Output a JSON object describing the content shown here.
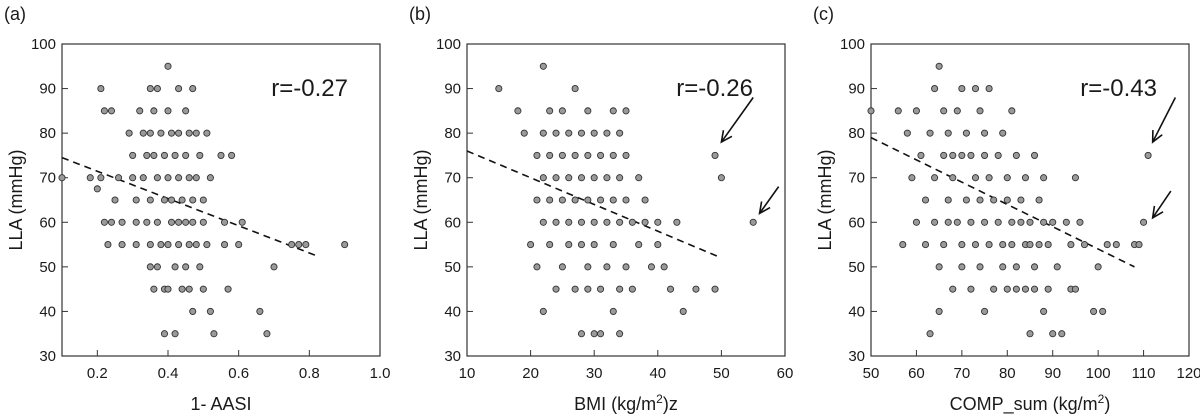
{
  "chart_data": [
    {
      "type": "scatter",
      "panel_label": "(a)",
      "xlabel": "1- AASI",
      "ylabel": "LLA (mmHg)",
      "annotation": "r=-0.27",
      "xlim": [
        0.1,
        1.0
      ],
      "ylim": [
        30,
        100
      ],
      "xticks": [
        0.2,
        0.4,
        0.6,
        0.8,
        1.0
      ],
      "xtick_labels": [
        "0.2",
        "0.4",
        "0.6",
        "0.8",
        "1.0"
      ],
      "yticks": [
        30,
        40,
        50,
        60,
        70,
        80,
        90,
        100
      ],
      "trend": [
        [
          0.1,
          74.5
        ],
        [
          0.82,
          52.5
        ]
      ],
      "points": [
        [
          0.1,
          70
        ],
        [
          0.18,
          70
        ],
        [
          0.2,
          67.5
        ],
        [
          0.21,
          90
        ],
        [
          0.21,
          70
        ],
        [
          0.22,
          85
        ],
        [
          0.22,
          60
        ],
        [
          0.23,
          55
        ],
        [
          0.24,
          60
        ],
        [
          0.24,
          85
        ],
        [
          0.25,
          65
        ],
        [
          0.26,
          70
        ],
        [
          0.27,
          55
        ],
        [
          0.27,
          60
        ],
        [
          0.29,
          80
        ],
        [
          0.3,
          75
        ],
        [
          0.3,
          70
        ],
        [
          0.31,
          65
        ],
        [
          0.31,
          60
        ],
        [
          0.31,
          55
        ],
        [
          0.32,
          85
        ],
        [
          0.33,
          80
        ],
        [
          0.33,
          70
        ],
        [
          0.34,
          75
        ],
        [
          0.34,
          60
        ],
        [
          0.35,
          90
        ],
        [
          0.35,
          80
        ],
        [
          0.35,
          65
        ],
        [
          0.35,
          55
        ],
        [
          0.35,
          50
        ],
        [
          0.36,
          85
        ],
        [
          0.36,
          75
        ],
        [
          0.36,
          45
        ],
        [
          0.37,
          90
        ],
        [
          0.37,
          70
        ],
        [
          0.37,
          60
        ],
        [
          0.37,
          50
        ],
        [
          0.38,
          80
        ],
        [
          0.38,
          55
        ],
        [
          0.39,
          75
        ],
        [
          0.39,
          65
        ],
        [
          0.39,
          45
        ],
        [
          0.39,
          35
        ],
        [
          0.4,
          95
        ],
        [
          0.4,
          85
        ],
        [
          0.4,
          70
        ],
        [
          0.4,
          55
        ],
        [
          0.4,
          45
        ],
        [
          0.41,
          80
        ],
        [
          0.41,
          65
        ],
        [
          0.41,
          60
        ],
        [
          0.42,
          75
        ],
        [
          0.42,
          50
        ],
        [
          0.42,
          35
        ],
        [
          0.43,
          90
        ],
        [
          0.43,
          80
        ],
        [
          0.43,
          70
        ],
        [
          0.43,
          60
        ],
        [
          0.43,
          55
        ],
        [
          0.44,
          65
        ],
        [
          0.44,
          45
        ],
        [
          0.45,
          85
        ],
        [
          0.45,
          75
        ],
        [
          0.45,
          60
        ],
        [
          0.45,
          50
        ],
        [
          0.46,
          80
        ],
        [
          0.46,
          70
        ],
        [
          0.46,
          55
        ],
        [
          0.46,
          45
        ],
        [
          0.47,
          90
        ],
        [
          0.47,
          65
        ],
        [
          0.47,
          60
        ],
        [
          0.47,
          40
        ],
        [
          0.48,
          80
        ],
        [
          0.48,
          70
        ],
        [
          0.48,
          55
        ],
        [
          0.49,
          75
        ],
        [
          0.49,
          50
        ],
        [
          0.5,
          65
        ],
        [
          0.5,
          60
        ],
        [
          0.5,
          45
        ],
        [
          0.51,
          80
        ],
        [
          0.51,
          55
        ],
        [
          0.52,
          70
        ],
        [
          0.52,
          40
        ],
        [
          0.53,
          35
        ],
        [
          0.55,
          75
        ],
        [
          0.56,
          60
        ],
        [
          0.56,
          55
        ],
        [
          0.57,
          45
        ],
        [
          0.58,
          75
        ],
        [
          0.6,
          55
        ],
        [
          0.61,
          60
        ],
        [
          0.66,
          40
        ],
        [
          0.68,
          35
        ],
        [
          0.7,
          50
        ],
        [
          0.75,
          55
        ],
        [
          0.77,
          55
        ],
        [
          0.79,
          55
        ],
        [
          0.9,
          55
        ]
      ]
    },
    {
      "type": "scatter",
      "panel_label": "(b)",
      "xlabel_parts": [
        "BMI (kg/m",
        "2",
        ")z"
      ],
      "ylabel": "LLA (mmHg)",
      "annotation": "r=-0.26",
      "xlim": [
        10,
        60
      ],
      "ylim": [
        30,
        100
      ],
      "xticks": [
        10,
        20,
        30,
        40,
        50,
        60
      ],
      "xtick_labels": [
        "10",
        "20",
        "30",
        "40",
        "50",
        "60"
      ],
      "yticks": [
        30,
        40,
        50,
        60,
        70,
        80,
        90,
        100
      ],
      "trend": [
        [
          10,
          76
        ],
        [
          50,
          52
        ]
      ],
      "arrows": [
        [
          [
            55,
            88
          ],
          [
            50,
            78
          ]
        ],
        [
          [
            59,
            68
          ],
          [
            56,
            62
          ]
        ]
      ],
      "points": [
        [
          15,
          90
        ],
        [
          18,
          85
        ],
        [
          19,
          80
        ],
        [
          20,
          55
        ],
        [
          21,
          75
        ],
        [
          21,
          65
        ],
        [
          21,
          50
        ],
        [
          22,
          95
        ],
        [
          22,
          80
        ],
        [
          22,
          70
        ],
        [
          22,
          60
        ],
        [
          22,
          40
        ],
        [
          23,
          85
        ],
        [
          23,
          75
        ],
        [
          23,
          65
        ],
        [
          23,
          55
        ],
        [
          24,
          80
        ],
        [
          24,
          70
        ],
        [
          24,
          60
        ],
        [
          24,
          45
        ],
        [
          25,
          85
        ],
        [
          25,
          75
        ],
        [
          25,
          65
        ],
        [
          25,
          50
        ],
        [
          26,
          80
        ],
        [
          26,
          70
        ],
        [
          26,
          60
        ],
        [
          26,
          55
        ],
        [
          27,
          90
        ],
        [
          27,
          75
        ],
        [
          27,
          65
        ],
        [
          27,
          45
        ],
        [
          28,
          80
        ],
        [
          28,
          70
        ],
        [
          28,
          60
        ],
        [
          28,
          55
        ],
        [
          28,
          35
        ],
        [
          29,
          85
        ],
        [
          29,
          75
        ],
        [
          29,
          65
        ],
        [
          29,
          50
        ],
        [
          29,
          45
        ],
        [
          30,
          80
        ],
        [
          30,
          70
        ],
        [
          30,
          60
        ],
        [
          30,
          55
        ],
        [
          30,
          35
        ],
        [
          31,
          75
        ],
        [
          31,
          65
        ],
        [
          31,
          45
        ],
        [
          31,
          35
        ],
        [
          32,
          80
        ],
        [
          32,
          70
        ],
        [
          32,
          60
        ],
        [
          32,
          50
        ],
        [
          33,
          85
        ],
        [
          33,
          75
        ],
        [
          33,
          65
        ],
        [
          33,
          55
        ],
        [
          33,
          40
        ],
        [
          34,
          80
        ],
        [
          34,
          70
        ],
        [
          34,
          60
        ],
        [
          34,
          45
        ],
        [
          34,
          35
        ],
        [
          35,
          85
        ],
        [
          35,
          75
        ],
        [
          35,
          65
        ],
        [
          35,
          50
        ],
        [
          36,
          60
        ],
        [
          36,
          45
        ],
        [
          37,
          70
        ],
        [
          37,
          55
        ],
        [
          38,
          65
        ],
        [
          38,
          60
        ],
        [
          39,
          50
        ],
        [
          40,
          55
        ],
        [
          40,
          60
        ],
        [
          41,
          50
        ],
        [
          42,
          45
        ],
        [
          43,
          60
        ],
        [
          44,
          40
        ],
        [
          46,
          45
        ],
        [
          49,
          75
        ],
        [
          49,
          45
        ],
        [
          50,
          70
        ],
        [
          55,
          60
        ]
      ]
    },
    {
      "type": "scatter",
      "panel_label": "(c)",
      "xlabel_parts": [
        "COMP_sum (kg/m",
        "2",
        ")"
      ],
      "ylabel": "LLA (mmHg)",
      "annotation": "r=-0.43",
      "xlim": [
        50,
        120
      ],
      "ylim": [
        30,
        100
      ],
      "xticks": [
        50,
        60,
        70,
        80,
        90,
        100,
        110,
        120
      ],
      "xtick_labels": [
        "50",
        "60",
        "70",
        "80",
        "90",
        "100",
        "110",
        "120"
      ],
      "yticks": [
        30,
        40,
        50,
        60,
        70,
        80,
        90,
        100
      ],
      "trend": [
        [
          50,
          79
        ],
        [
          108,
          50
        ]
      ],
      "arrows": [
        [
          [
            117,
            88
          ],
          [
            112,
            78
          ]
        ],
        [
          [
            116,
            67
          ],
          [
            112,
            61
          ]
        ]
      ],
      "points": [
        [
          50,
          85
        ],
        [
          56,
          85
        ],
        [
          57,
          55
        ],
        [
          58,
          80
        ],
        [
          59,
          70
        ],
        [
          60,
          85
        ],
        [
          60,
          60
        ],
        [
          61,
          75
        ],
        [
          62,
          65
        ],
        [
          62,
          55
        ],
        [
          63,
          80
        ],
        [
          63,
          35
        ],
        [
          64,
          90
        ],
        [
          64,
          70
        ],
        [
          64,
          60
        ],
        [
          65,
          95
        ],
        [
          65,
          50
        ],
        [
          65,
          40
        ],
        [
          66,
          85
        ],
        [
          66,
          75
        ],
        [
          66,
          55
        ],
        [
          67,
          80
        ],
        [
          67,
          65
        ],
        [
          67,
          60
        ],
        [
          68,
          75
        ],
        [
          68,
          70
        ],
        [
          68,
          45
        ],
        [
          69,
          85
        ],
        [
          69,
          60
        ],
        [
          70,
          90
        ],
        [
          70,
          75
        ],
        [
          70,
          55
        ],
        [
          70,
          50
        ],
        [
          71,
          80
        ],
        [
          71,
          65
        ],
        [
          72,
          75
        ],
        [
          72,
          60
        ],
        [
          72,
          45
        ],
        [
          73,
          90
        ],
        [
          73,
          70
        ],
        [
          73,
          55
        ],
        [
          74,
          85
        ],
        [
          74,
          65
        ],
        [
          74,
          50
        ],
        [
          75,
          80
        ],
        [
          75,
          75
        ],
        [
          75,
          60
        ],
        [
          75,
          40
        ],
        [
          76,
          90
        ],
        [
          76,
          70
        ],
        [
          76,
          55
        ],
        [
          77,
          65
        ],
        [
          77,
          45
        ],
        [
          78,
          75
        ],
        [
          78,
          60
        ],
        [
          79,
          80
        ],
        [
          79,
          55
        ],
        [
          79,
          50
        ],
        [
          80,
          70
        ],
        [
          80,
          65
        ],
        [
          80,
          45
        ],
        [
          81,
          85
        ],
        [
          81,
          60
        ],
        [
          81,
          55
        ],
        [
          82,
          75
        ],
        [
          82,
          50
        ],
        [
          82,
          45
        ],
        [
          83,
          65
        ],
        [
          83,
          60
        ],
        [
          84,
          70
        ],
        [
          84,
          55
        ],
        [
          84,
          45
        ],
        [
          85,
          60
        ],
        [
          85,
          55
        ],
        [
          85,
          35
        ],
        [
          86,
          75
        ],
        [
          86,
          50
        ],
        [
          86,
          45
        ],
        [
          87,
          65
        ],
        [
          87,
          55
        ],
        [
          88,
          70
        ],
        [
          88,
          60
        ],
        [
          88,
          40
        ],
        [
          89,
          55
        ],
        [
          89,
          45
        ],
        [
          90,
          60
        ],
        [
          90,
          35
        ],
        [
          91,
          50
        ],
        [
          92,
          35
        ],
        [
          93,
          60
        ],
        [
          94,
          55
        ],
        [
          94,
          45
        ],
        [
          95,
          70
        ],
        [
          95,
          45
        ],
        [
          96,
          60
        ],
        [
          97,
          55
        ],
        [
          99,
          40
        ],
        [
          100,
          50
        ],
        [
          101,
          40
        ],
        [
          102,
          55
        ],
        [
          104,
          55
        ],
        [
          108,
          55
        ],
        [
          109,
          55
        ],
        [
          110,
          60
        ],
        [
          111,
          75
        ]
      ]
    }
  ]
}
